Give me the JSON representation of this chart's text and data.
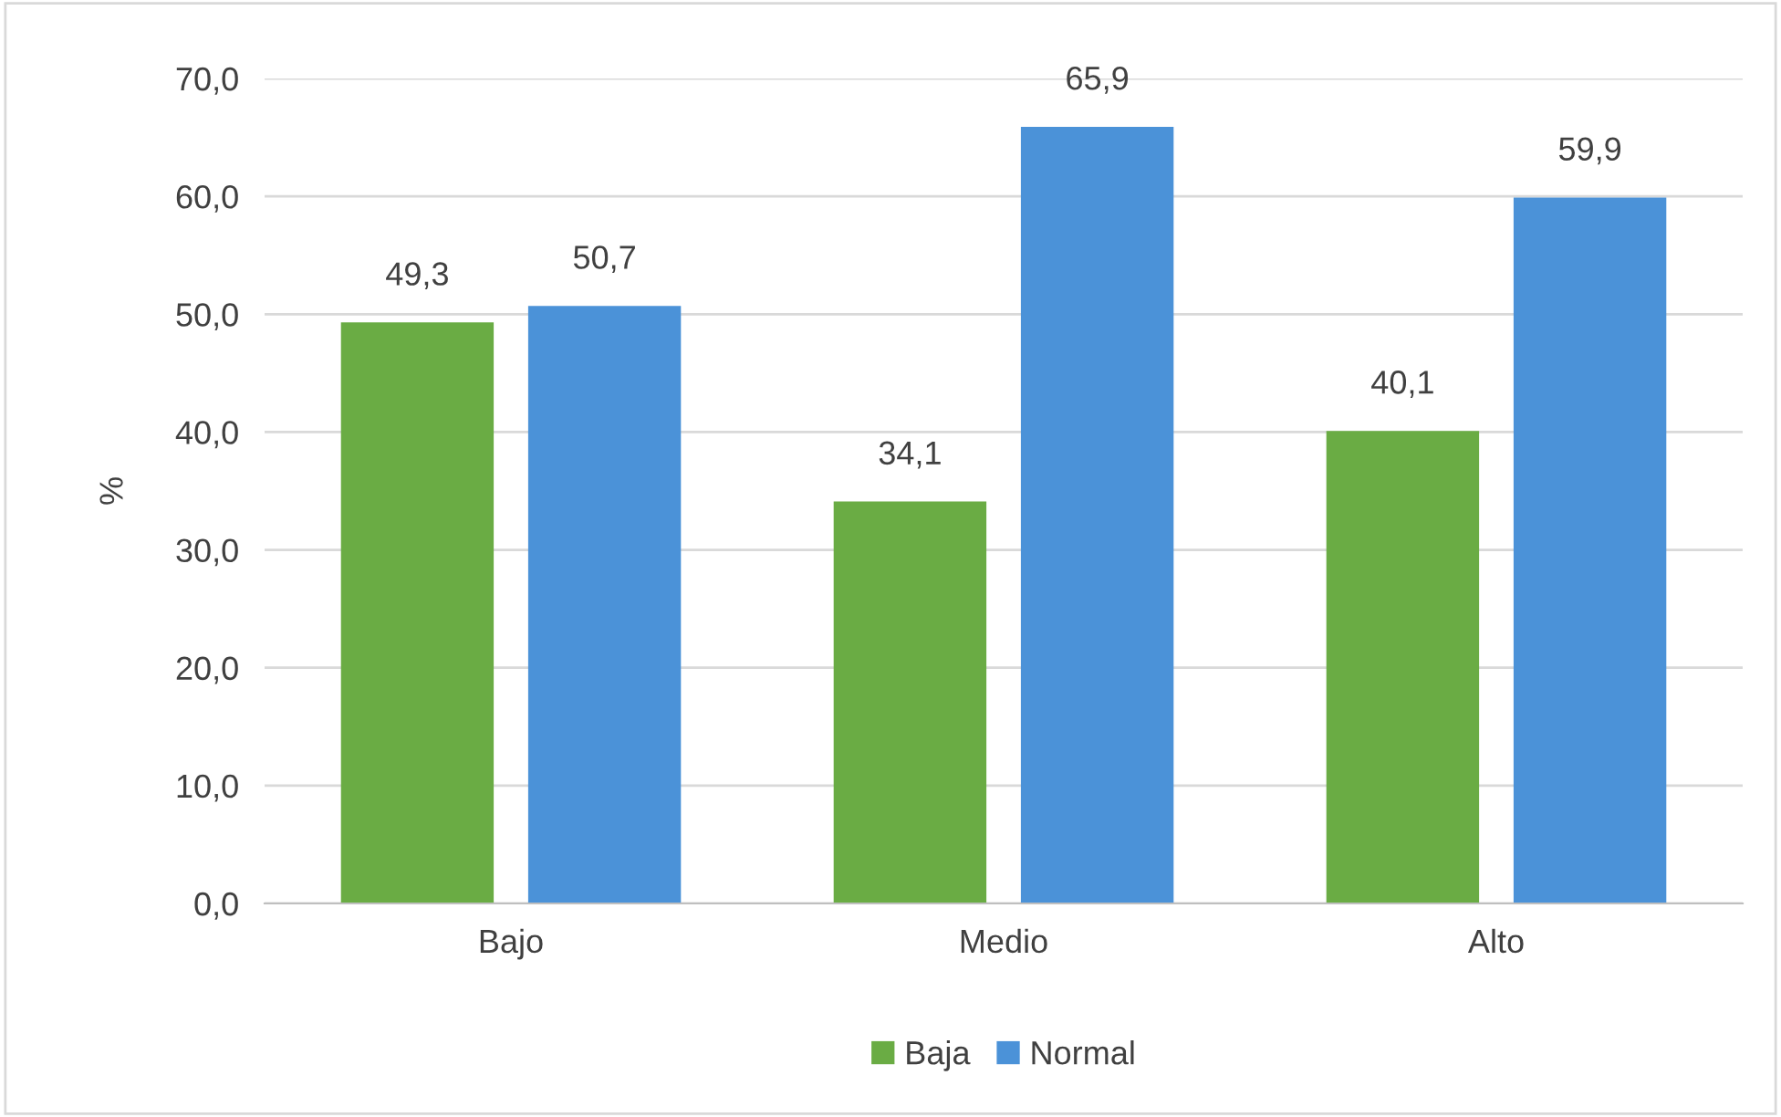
{
  "chart_data": {
    "type": "bar",
    "ylabel": "%",
    "categories": [
      "Bajo",
      "Medio",
      "Alto"
    ],
    "series": [
      {
        "name": "Baja",
        "color": "#6aac44",
        "values": [
          49.3,
          34.1,
          40.1
        ],
        "value_labels": [
          "49,3",
          "34,1",
          "40,1"
        ]
      },
      {
        "name": "Normal",
        "color": "#4b92d8",
        "values": [
          50.7,
          65.9,
          59.9
        ],
        "value_labels": [
          "50,7",
          "65,9",
          "59,9"
        ]
      }
    ],
    "ylim": [
      0,
      70
    ],
    "yticks": [
      {
        "value": 0,
        "label": "0,0"
      },
      {
        "value": 10,
        "label": "10,0"
      },
      {
        "value": 20,
        "label": "20,0"
      },
      {
        "value": 30,
        "label": "30,0"
      },
      {
        "value": 40,
        "label": "40,0"
      },
      {
        "value": 50,
        "label": "50,0"
      },
      {
        "value": 60,
        "label": "60,0"
      },
      {
        "value": 70,
        "label": "70,0"
      }
    ],
    "grid": "y",
    "legend": "bottom"
  }
}
